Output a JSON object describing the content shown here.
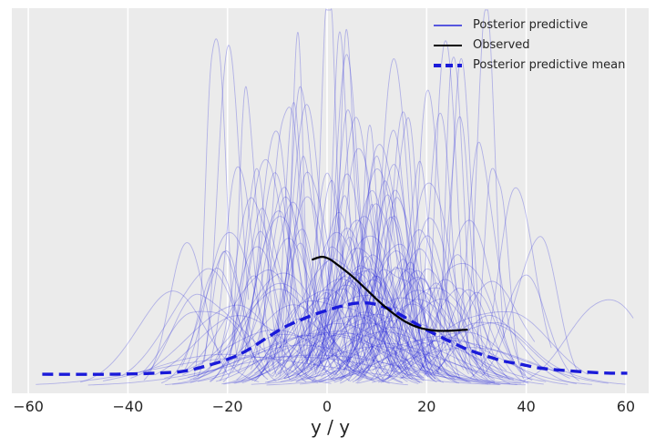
{
  "figure": {
    "background": "#ffffff",
    "plot_background": "#ebebeb",
    "grid_color": "#ffffff",
    "text_color": "#262626"
  },
  "axes": {
    "xlabel": "y / y",
    "x_ticks": [
      -60,
      -40,
      -20,
      0,
      20,
      40,
      60
    ],
    "x_tick_labels": [
      "−60",
      "−40",
      "−20",
      "0",
      "20",
      "40",
      "60"
    ],
    "x_range": [
      -63.3,
      64.8
    ],
    "y_axis": "density (no ticks, no label)",
    "grid": "vertical white gridlines at x ticks"
  },
  "legend": {
    "position": "upper right",
    "frame": false,
    "items": [
      {
        "label": "Posterior predictive",
        "style": "solid",
        "color": "#2d2dda",
        "opacity": 0.78
      },
      {
        "label": "Observed",
        "style": "solid",
        "color": "#000000",
        "opacity": 1
      },
      {
        "label": "Posterior predictive mean",
        "style": "dashed",
        "color": "#1a1ad9",
        "opacity": 1
      }
    ]
  },
  "chart_data": {
    "type": "line",
    "title": "",
    "xlabel": "y / y",
    "ylabel": "",
    "x_range": [
      -63.3,
      64.8
    ],
    "ylim": [
      0,
      1.02
    ],
    "y_units": "normalized density (0 = baseline, 1 = plot top)",
    "legend_position": "upper right",
    "grid": "vertical only, white on gray",
    "series": [
      {
        "name": "Posterior predictive",
        "kind": "kde-ensemble",
        "color": "#2b2bdc",
        "opacity": 0.3,
        "line_width": 0.9,
        "generator": {
          "n_curves": 190,
          "seed": 13,
          "center_normal_mean": 5,
          "center_normal_sd": 13,
          "center_outlier_fraction": 0.14,
          "center_outlier_range": [
            -50,
            57
          ],
          "center_clip": [
            -53,
            58
          ],
          "sigma_log_mean": 1.5,
          "sigma_log_sd": 0.55,
          "sigma_clip": [
            1.7,
            22
          ],
          "area_range": [
            1.0,
            2.2
          ],
          "peak_max": 0.95,
          "asymmetry": 0.35,
          "shoulder_amp_range": [
            0.1,
            0.45
          ],
          "cut_sigma_range": [
            1.8,
            2.7
          ],
          "x_clip": [
            -58.5,
            61.5
          ]
        }
      },
      {
        "name": "Observed",
        "kind": "line",
        "color": "#000000",
        "line_width": 2.2,
        "x": [
          -2.9,
          -1.1,
          0.5,
          2.2,
          4.9,
          7.7,
          10.4,
          13.2,
          15.9,
          18.6,
          21.4,
          24.1,
          26.8,
          28.1
        ],
        "density": [
          0.335,
          0.342,
          0.336,
          0.32,
          0.292,
          0.258,
          0.224,
          0.193,
          0.169,
          0.154,
          0.147,
          0.146,
          0.148,
          0.149
        ]
      },
      {
        "name": "Posterior predictive mean",
        "kind": "dashed-line",
        "color": "#1a1ad9",
        "line_width": 3.4,
        "dash": [
          12,
          6.5
        ],
        "x": [
          -57.2,
          -43.5,
          -34.3,
          -28.9,
          -24.3,
          -19.7,
          -16.1,
          -12.4,
          -8.8,
          -5.1,
          -2.4,
          0.4,
          3.1,
          5.8,
          8.6,
          11.3,
          14.1,
          16.8,
          19.5,
          22.3,
          25.0,
          27.8,
          31.4,
          35.1,
          38.7,
          42.4,
          46.0,
          49.7,
          53.3,
          57.0,
          60.3
        ],
        "density": [
          0.031,
          0.031,
          0.034,
          0.039,
          0.053,
          0.072,
          0.094,
          0.125,
          0.154,
          0.176,
          0.19,
          0.202,
          0.212,
          0.219,
          0.219,
          0.21,
          0.193,
          0.173,
          0.152,
          0.133,
          0.116,
          0.099,
          0.082,
          0.067,
          0.058,
          0.048,
          0.043,
          0.039,
          0.036,
          0.034,
          0.034
        ]
      }
    ]
  }
}
